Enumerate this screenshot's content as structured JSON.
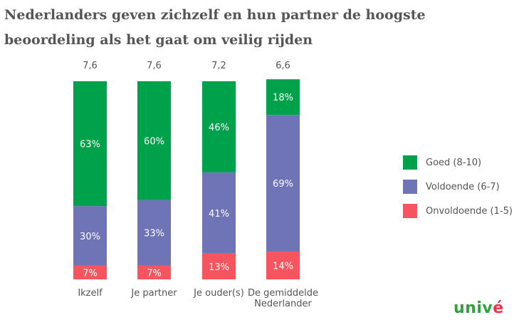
{
  "title": {
    "line1": "Nederlanders geven zichzelf en hun partner de hoogste",
    "line2": "beoordeling als het gaat om veilig rijden"
  },
  "colors": {
    "goed": "#00a14b",
    "voldoende": "#6f74b6",
    "onvoldoende": "#f6555f"
  },
  "chart_data": {
    "type": "bar",
    "stacked": true,
    "categories": [
      [
        "Ikzelf"
      ],
      [
        "Je partner"
      ],
      [
        "Je ouder(s)"
      ],
      [
        "De gemiddelde",
        "Nederlander"
      ]
    ],
    "scores": [
      "7,6",
      "7,6",
      "7,2",
      "6,6"
    ],
    "series": [
      {
        "name": "Onvoldoende (1-5)",
        "key": "onvoldoende",
        "values": [
          7,
          7,
          13,
          14
        ],
        "labels": [
          "7%",
          "7%",
          "13%",
          "14%"
        ]
      },
      {
        "name": "Voldoende (6-7)",
        "key": "voldoende",
        "values": [
          30,
          33,
          41,
          69
        ],
        "labels": [
          "30%",
          "33%",
          "41%",
          "69%"
        ]
      },
      {
        "name": "Goed (8-10)",
        "key": "goed",
        "values": [
          63,
          60,
          46,
          18
        ],
        "labels": [
          "63%",
          "60%",
          "46%",
          "18%"
        ]
      }
    ],
    "ylim": [
      0,
      100
    ],
    "legend_position": "right"
  },
  "legend": [
    {
      "label": "Goed (8-10)",
      "color": "#00a14b"
    },
    {
      "label": "Voldoende (6-7)",
      "color": "#6f74b6"
    },
    {
      "label": "Onvoldoende (1-5)",
      "color": "#f6555f"
    }
  ],
  "logo": {
    "main": "univ",
    "accent": "é"
  }
}
